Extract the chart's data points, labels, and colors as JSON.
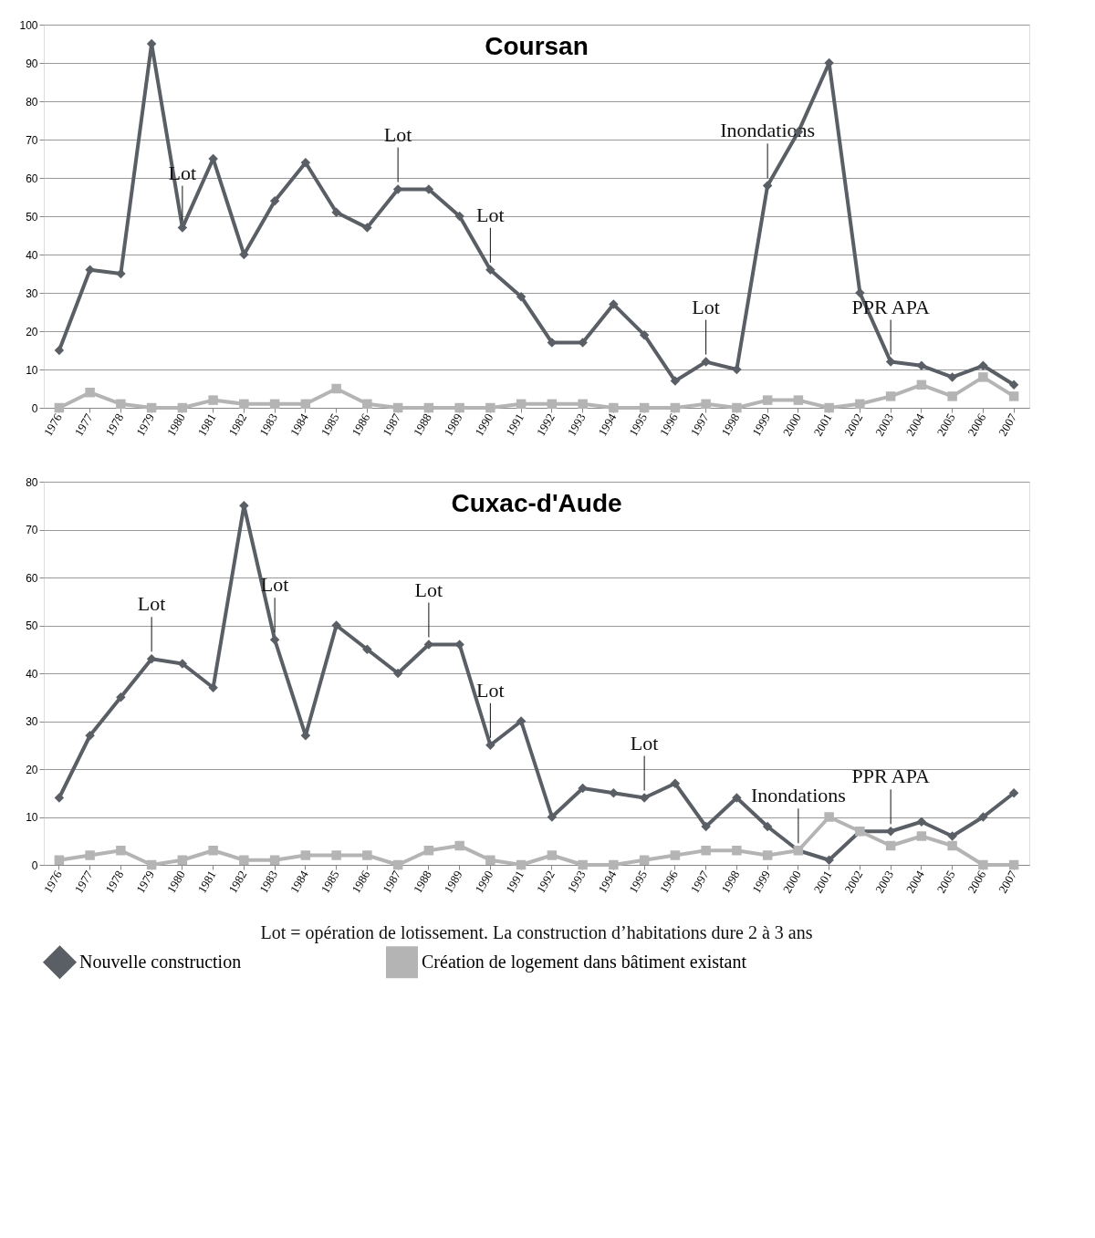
{
  "chart_data": [
    {
      "type": "line",
      "title": "Coursan",
      "categories": [
        "1976",
        "1977",
        "1978",
        "1979",
        "1980",
        "1981",
        "1982",
        "1983",
        "1984",
        "1985",
        "1986",
        "1987",
        "1988",
        "1989",
        "1990",
        "1991",
        "1992",
        "1993",
        "1994",
        "1995",
        "1996",
        "1997",
        "1998",
        "1999",
        "2000",
        "2001",
        "2002",
        "2003",
        "2004",
        "2005",
        "2006",
        "2007"
      ],
      "series": [
        {
          "color": "#5a5f66",
          "marker": "diamond",
          "values": [
            15,
            36,
            35,
            95,
            47,
            65,
            40,
            54,
            64,
            51,
            47,
            57,
            57,
            50,
            36,
            29,
            17,
            17,
            27,
            19,
            7,
            12,
            10,
            58,
            72,
            90,
            30,
            12,
            11,
            8,
            11,
            6
          ]
        },
        {
          "color": "#b4b4b4",
          "marker": "square",
          "values": [
            0,
            4,
            1,
            0,
            0,
            2,
            1,
            1,
            1,
            5,
            1,
            0,
            0,
            0,
            0,
            1,
            1,
            1,
            0,
            0,
            0,
            1,
            0,
            2,
            2,
            0,
            1,
            3,
            6,
            3,
            8,
            3
          ]
        }
      ],
      "ylim": [
        0,
        100
      ],
      "yticks": [
        0,
        10,
        20,
        30,
        40,
        50,
        60,
        70,
        80,
        90,
        100
      ],
      "grid": "y",
      "legend": false,
      "line_style": "solid",
      "annotations": [
        {
          "text": "Lot",
          "x": "1980",
          "y": 47
        },
        {
          "text": "Lot",
          "x": "1987",
          "y": 57
        },
        {
          "text": "Lot",
          "x": "1990",
          "y": 36
        },
        {
          "text": "Lot",
          "x": "1997",
          "y": 12
        },
        {
          "text": "Inondations",
          "x": "1999",
          "y": 58
        },
        {
          "text": "PPR APA",
          "x": "2003",
          "y": 12
        }
      ]
    },
    {
      "type": "line",
      "title": "Cuxac-d'Aude",
      "categories": [
        "1976",
        "1977",
        "1978",
        "1979",
        "1980",
        "1981",
        "1982",
        "1983",
        "1984",
        "1985",
        "1986",
        "1987",
        "1988",
        "1989",
        "1990",
        "1991",
        "1992",
        "1993",
        "1994",
        "1995",
        "1996",
        "1997",
        "1998",
        "1999",
        "2000",
        "2001",
        "2002",
        "2003",
        "2004",
        "2005",
        "2006",
        "2007"
      ],
      "series": [
        {
          "name": "Nouvelle construction",
          "color": "#5a5f66",
          "marker": "diamond",
          "values": [
            14,
            27,
            35,
            43,
            42,
            37,
            75,
            47,
            27,
            50,
            45,
            40,
            46,
            46,
            25,
            30,
            10,
            16,
            15,
            14,
            17,
            8,
            14,
            8,
            3,
            1,
            7,
            7,
            9,
            6,
            10,
            15
          ]
        },
        {
          "name": "Création de logement dans bâtiment existant",
          "color": "#b4b4b4",
          "marker": "square",
          "values": [
            1,
            2,
            3,
            0,
            1,
            3,
            1,
            1,
            2,
            2,
            2,
            0,
            3,
            4,
            1,
            0,
            2,
            0,
            0,
            1,
            2,
            3,
            3,
            2,
            3,
            10,
            7,
            4,
            6,
            4,
            0,
            0
          ]
        }
      ],
      "ylim": [
        0,
        80
      ],
      "yticks": [
        0,
        10,
        20,
        30,
        40,
        50,
        60,
        70,
        80
      ],
      "grid": "y",
      "legend": "bottom",
      "line_style": "solid",
      "annotations": [
        {
          "text": "Lot",
          "x": "1979",
          "y": 43
        },
        {
          "text": "Lot",
          "x": "1983",
          "y": 47
        },
        {
          "text": "Lot",
          "x": "1988",
          "y": 46
        },
        {
          "text": "Lot",
          "x": "1990",
          "y": 25
        },
        {
          "text": "Lot",
          "x": "1995",
          "y": 14
        },
        {
          "text": "Inondations",
          "x": "2000",
          "y": 3
        },
        {
          "text": "PPR APA",
          "x": "2003",
          "y": 7
        },
        "Lot = opération de lotissement. La construction d’habitations dure 2 à 3 ans"
      ]
    }
  ]
}
